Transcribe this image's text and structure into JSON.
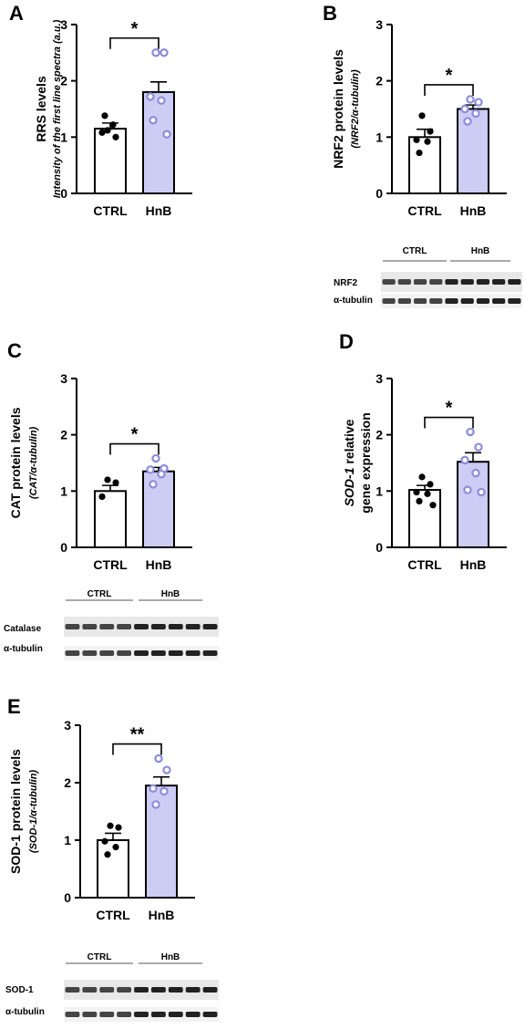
{
  "panels": [
    {
      "letter": "A",
      "ylabel": "RRS levels",
      "ylabel_sub": "Intensity of the  first line spectra (a.u.)",
      "ylabel_sub_italic": true,
      "significance": "*",
      "blot": null
    },
    {
      "letter": "B",
      "ylabel": "NRF2 protein levels",
      "ylabel_sub": "(NRF2/α-tubulin)",
      "ylabel_sub_italic": true,
      "significance": "*",
      "blot": {
        "groups": [
          "CTRL",
          "HnB"
        ],
        "rows": [
          "NRF2",
          "α-tubulin"
        ]
      }
    },
    {
      "letter": "C",
      "ylabel": "CAT protein levels",
      "ylabel_sub": "(CAT/α-tubulin)",
      "ylabel_sub_italic": true,
      "significance": "*",
      "blot": {
        "groups": [
          "CTRL",
          "HnB"
        ],
        "rows": [
          "Catalase",
          "α-tubulin"
        ]
      }
    },
    {
      "letter": "D",
      "ylabel": "SOD-1 relative",
      "ylabel_italic_prefix": "SOD-1",
      "ylabel_sub": "gene expression",
      "ylabel_sub_italic": false,
      "significance": "*",
      "blot": null
    },
    {
      "letter": "E",
      "ylabel": "SOD-1 protein levels",
      "ylabel_sub": "(SOD-1/α-tubulin)",
      "ylabel_sub_italic": true,
      "significance": "**",
      "blot": {
        "groups": [
          "CTRL",
          "HnB"
        ],
        "rows": [
          "SOD-1",
          "α-tubulin"
        ]
      }
    }
  ],
  "colors": {
    "ctrl_fill": "#ffffff",
    "hnb_fill": "#ccccf5",
    "ctrl_point": "#000000",
    "hnb_point": "#8c8cdc",
    "axis": "#000000"
  },
  "chart_data": [
    {
      "type": "bar",
      "panel": "A",
      "categories": [
        "CTRL",
        "HnB"
      ],
      "values": [
        1.15,
        1.8
      ],
      "sem": [
        0.1,
        0.18
      ],
      "points": [
        [
          1.12,
          1.0,
          1.08,
          1.22,
          1.38
        ],
        [
          2.5,
          2.5,
          1.72,
          1.65,
          1.3,
          1.05
        ]
      ],
      "significance": "*",
      "ylabel": "RRS levels",
      "ylim": [
        0,
        3
      ],
      "yticks": [
        0,
        1,
        2,
        3
      ],
      "grid": false
    },
    {
      "type": "bar",
      "panel": "B",
      "categories": [
        "CTRL",
        "HnB"
      ],
      "values": [
        1.0,
        1.5
      ],
      "sem": [
        0.14,
        0.07
      ],
      "points": [
        [
          1.38,
          1.1,
          0.95,
          0.92,
          0.72
        ],
        [
          1.67,
          1.62,
          1.5,
          1.42,
          1.28
        ]
      ],
      "significance": "*",
      "ylabel": "NRF2 protein levels",
      "ylim": [
        0,
        3
      ],
      "yticks": [
        0,
        1,
        2,
        3
      ],
      "grid": false
    },
    {
      "type": "bar",
      "panel": "C",
      "categories": [
        "CTRL",
        "HnB"
      ],
      "values": [
        1.0,
        1.35
      ],
      "sem": [
        0.1,
        0.07
      ],
      "points": [
        [
          1.2,
          1.15,
          0.9
        ],
        [
          1.58,
          1.4,
          1.38,
          1.3,
          1.12
        ]
      ],
      "significance": "*",
      "ylabel": "CAT protein levels",
      "ylim": [
        0,
        3
      ],
      "yticks": [
        0,
        1,
        2,
        3
      ],
      "grid": false
    },
    {
      "type": "bar",
      "panel": "D",
      "categories": [
        "CTRL",
        "HnB"
      ],
      "values": [
        1.02,
        1.52
      ],
      "sem": [
        0.08,
        0.16
      ],
      "points": [
        [
          1.25,
          1.12,
          0.98,
          0.95,
          0.82,
          0.75
        ],
        [
          2.05,
          1.78,
          1.55,
          1.32,
          1.02,
          0.98
        ]
      ],
      "significance": "*",
      "ylabel": "SOD-1 relative gene expression",
      "ylim": [
        0,
        3
      ],
      "yticks": [
        0,
        1,
        2,
        3
      ],
      "grid": false
    },
    {
      "type": "bar",
      "panel": "E",
      "categories": [
        "CTRL",
        "HnB"
      ],
      "values": [
        1.0,
        1.95
      ],
      "sem": [
        0.12,
        0.15
      ],
      "points": [
        [
          1.25,
          1.22,
          0.98,
          0.88,
          0.75
        ],
        [
          2.42,
          2.22,
          1.9,
          1.85,
          1.62
        ]
      ],
      "significance": "**",
      "ylabel": "SOD-1 protein levels",
      "ylim": [
        0,
        3
      ],
      "yticks": [
        0,
        1,
        2,
        3
      ],
      "grid": false
    }
  ]
}
